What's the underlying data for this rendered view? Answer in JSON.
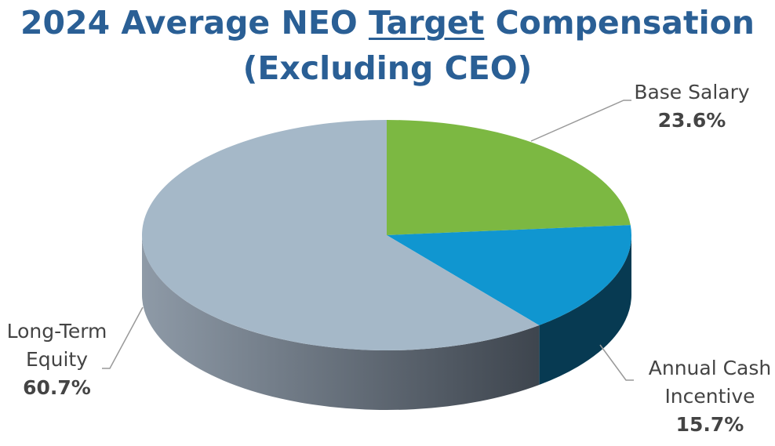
{
  "chart_data": {
    "type": "pie3d",
    "title_lines": [
      [
        {
          "text": "2024 Average NEO"
        },
        {
          "text": "Target",
          "underline": true
        },
        {
          "text": "Compensation"
        }
      ],
      [
        {
          "text": "(Excluding CEO)"
        }
      ]
    ],
    "categories": [
      "Base Salary",
      "Annual Cash Incentive",
      "Long-Term Equity"
    ],
    "values": [
      23.6,
      15.7,
      60.7
    ],
    "value_labels": [
      "23.6%",
      "15.7%",
      "60.7%"
    ],
    "colors": [
      "#7cb842",
      "#1096d0",
      "#a5b8c8"
    ],
    "start_angle": 90,
    "direction": "clockwise"
  }
}
